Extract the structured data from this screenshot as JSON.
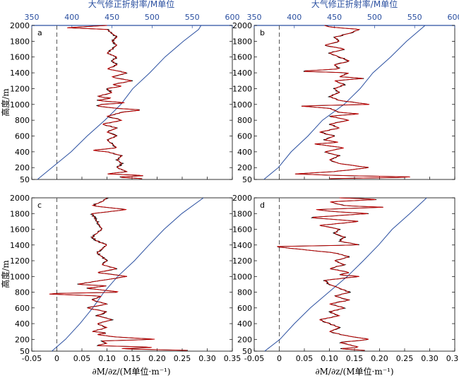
{
  "figure": {
    "top_axis_label": "大气修正折射率/M单位",
    "bottom_axis_label": "∂M/∂z/(M单位·m⁻¹)",
    "y_axis_label": "高度/m"
  },
  "colors": {
    "refractivity_line": "#2a4fa0",
    "gradient_raw": "#000000",
    "gradient_smoothed": "#cc0000",
    "zero_line": "#555555"
  },
  "chart_data": [
    {
      "type": "line",
      "panel_label": "a",
      "x_bottom_lim": [
        -0.05,
        0.35
      ],
      "x_bottom_ticks": [
        "-0.05",
        "0",
        "0.05",
        "0.10",
        "0.15",
        "0.20",
        "0.25",
        "0.30",
        "0.35"
      ],
      "x_top_lim": [
        350,
        600
      ],
      "x_top_ticks": [
        "350",
        "400",
        "450",
        "500",
        "550",
        "600"
      ],
      "y_lim": [
        50,
        2000
      ],
      "y_ticks": [
        "50",
        "200",
        "400",
        "600",
        "800",
        "1000",
        "1200",
        "1400",
        "1600",
        "1800",
        "2000"
      ],
      "zero_line_x": 0,
      "series": [
        {
          "axis": "top",
          "y": [
            50,
            200,
            400,
            600,
            800,
            1000,
            1200,
            1400,
            1600,
            1800,
            1950,
            2000
          ],
          "x": [
            357,
            375,
            399,
            419,
            441,
            461,
            476,
            497,
            516,
            539,
            558,
            561
          ]
        },
        {
          "axis": "bottom",
          "y": [
            60,
            80,
            100,
            120,
            150,
            200,
            250,
            300,
            350,
            400,
            420,
            450,
            500,
            550,
            600,
            650,
            700,
            750,
            800,
            850,
            900,
            930,
            950,
            980,
            1000,
            1020,
            1050,
            1080,
            1100,
            1150,
            1200,
            1230,
            1250,
            1300,
            1330,
            1350,
            1400,
            1450,
            1500,
            1550,
            1600,
            1650,
            1700,
            1750,
            1800,
            1850,
            1900,
            1950,
            1970,
            2000
          ],
          "x": [
            0.17,
            0.12,
            0.18,
            0.1,
            0.14,
            0.12,
            0.13,
            0.12,
            0.13,
            0.1,
            0.07,
            0.12,
            0.11,
            0.1,
            0.12,
            0.1,
            0.12,
            0.09,
            0.13,
            0.1,
            0.13,
            0.17,
            0.12,
            0.08,
            0.09,
            0.14,
            0.08,
            0.11,
            0.08,
            0.11,
            0.1,
            0.13,
            0.11,
            0.15,
            0.12,
            0.11,
            0.14,
            0.1,
            0.12,
            0.11,
            0.12,
            0.1,
            0.11,
            0.12,
            0.11,
            0.12,
            0.11,
            0.1,
            0.02,
            0.1
          ]
        }
      ]
    },
    {
      "type": "line",
      "panel_label": "b",
      "x_bottom_lim": [
        -0.05,
        0.35
      ],
      "x_bottom_ticks": [
        "-0.05",
        "0",
        "0.05",
        "0.10",
        "0.15",
        "0.20",
        "0.25",
        "0.30",
        "0.35"
      ],
      "x_top_lim": [
        350,
        600
      ],
      "x_top_ticks": [
        "350",
        "400",
        "450",
        "500",
        "550",
        "600"
      ],
      "y_lim": [
        50,
        2000
      ],
      "y_ticks": [
        "50",
        "200",
        "400",
        "600",
        "800",
        "1000",
        "1200",
        "1400",
        "1600",
        "1800",
        "2000"
      ],
      "zero_line_x": 0,
      "series": [
        {
          "axis": "top",
          "y": [
            50,
            200,
            400,
            600,
            800,
            1000,
            1200,
            1400,
            1600,
            1800,
            2000
          ],
          "x": [
            362,
            380,
            396,
            417,
            435,
            462,
            482,
            498,
            520,
            540,
            563
          ]
        },
        {
          "axis": "bottom",
          "y": [
            60,
            80,
            100,
            120,
            150,
            200,
            250,
            300,
            350,
            400,
            450,
            500,
            520,
            550,
            600,
            650,
            700,
            750,
            800,
            850,
            880,
            900,
            950,
            980,
            1000,
            1050,
            1100,
            1150,
            1200,
            1250,
            1300,
            1330,
            1350,
            1400,
            1420,
            1450,
            1500,
            1550,
            1600,
            1650,
            1700,
            1750,
            1800,
            1850,
            1900,
            1950,
            1980,
            2000
          ],
          "x": [
            0.1,
            0.28,
            0.12,
            0.03,
            0.11,
            0.18,
            0.12,
            0.1,
            0.12,
            0.09,
            0.13,
            0.07,
            0.12,
            0.09,
            0.11,
            0.08,
            0.12,
            0.1,
            0.14,
            0.1,
            0.16,
            0.12,
            0.1,
            0.04,
            0.18,
            0.12,
            0.1,
            0.12,
            0.11,
            0.13,
            0.11,
            0.17,
            0.12,
            0.14,
            0.04,
            0.12,
            0.11,
            0.14,
            0.12,
            0.1,
            0.13,
            0.09,
            0.12,
            0.11,
            0.14,
            0.16,
            0.1,
            0.09
          ]
        }
      ]
    },
    {
      "type": "line",
      "panel_label": "c",
      "x_bottom_lim": [
        -0.05,
        0.35
      ],
      "x_bottom_ticks": [
        "-0.05",
        "0",
        "0.05",
        "0.10",
        "0.15",
        "0.20",
        "0.25",
        "0.30",
        "0.35"
      ],
      "y_lim": [
        50,
        2000
      ],
      "y_ticks": [
        "50",
        "200",
        "400",
        "600",
        "800",
        "1000",
        "1200",
        "1400",
        "1600",
        "1800",
        "2000"
      ],
      "zero_line_x": 0,
      "series": [
        {
          "axis": "top",
          "y": [
            50,
            200,
            400,
            600,
            800,
            1000,
            1200,
            1400,
            1600,
            1800,
            2000
          ],
          "x": [
            375,
            392,
            410,
            426,
            440,
            457,
            478,
            496,
            515,
            537,
            564
          ]
        },
        {
          "axis": "bottom",
          "y": [
            60,
            80,
            100,
            120,
            150,
            180,
            200,
            230,
            260,
            280,
            300,
            350,
            400,
            450,
            500,
            550,
            600,
            650,
            700,
            750,
            780,
            800,
            850,
            880,
            900,
            950,
            1000,
            1050,
            1100,
            1150,
            1200,
            1300,
            1400,
            1450,
            1500,
            1600,
            1700,
            1800,
            1850,
            1900,
            1950,
            2000
          ],
          "x": [
            0.26,
            0.12,
            0.2,
            0.08,
            0.1,
            0.09,
            0.2,
            0.12,
            0.08,
            0.1,
            0.07,
            0.1,
            0.08,
            0.11,
            0.08,
            0.1,
            0.06,
            0.1,
            0.07,
            0.09,
            -0.03,
            0.13,
            0.06,
            0.1,
            0.04,
            0.09,
            0.14,
            0.08,
            0.12,
            0.09,
            0.1,
            0.08,
            0.1,
            0.08,
            0.07,
            0.09,
            0.08,
            0.07,
            0.14,
            0.07,
            0.09,
            0.1
          ]
        }
      ]
    },
    {
      "type": "line",
      "panel_label": "d",
      "x_bottom_lim": [
        -0.05,
        0.35
      ],
      "x_bottom_ticks": [
        "-0.05",
        "0",
        "0.05",
        "0.10",
        "0.15",
        "0.20",
        "0.25",
        "0.30",
        "0.35"
      ],
      "y_lim": [
        50,
        2000
      ],
      "y_ticks": [
        "50",
        "200",
        "400",
        "600",
        "800",
        "1000",
        "1200",
        "1400",
        "1600",
        "1800",
        "2000"
      ],
      "zero_line_x": 0,
      "series": [
        {
          "axis": "top",
          "y": [
            50,
            200,
            400,
            600,
            800,
            1000,
            1200,
            1400,
            1600,
            1800,
            2000
          ],
          "x": [
            363,
            382,
            400,
            420,
            443,
            466,
            486,
            505,
            522,
            544,
            565
          ]
        },
        {
          "axis": "bottom",
          "y": [
            60,
            80,
            100,
            130,
            160,
            200,
            250,
            300,
            350,
            400,
            450,
            500,
            550,
            600,
            650,
            700,
            750,
            800,
            850,
            900,
            950,
            1000,
            1020,
            1050,
            1100,
            1150,
            1200,
            1250,
            1300,
            1380,
            1400,
            1450,
            1500,
            1550,
            1600,
            1650,
            1700,
            1750,
            1800,
            1820,
            1850,
            1880,
            1900,
            1950,
            1980,
            2000
          ],
          "x": [
            0.17,
            0.12,
            0.16,
            0.14,
            0.12,
            0.18,
            0.13,
            0.1,
            0.12,
            0.1,
            0.08,
            0.12,
            0.1,
            0.13,
            0.1,
            0.14,
            0.11,
            0.14,
            0.12,
            0.1,
            0.09,
            0.16,
            0.12,
            0.14,
            0.1,
            0.13,
            0.11,
            0.14,
            0.11,
            -0.01,
            0.16,
            0.12,
            0.13,
            0.11,
            0.12,
            0.08,
            0.16,
            0.06,
            0.18,
            0.12,
            0.07,
            0.21,
            0.13,
            0.1,
            0.2,
            0.12
          ]
        }
      ]
    }
  ]
}
